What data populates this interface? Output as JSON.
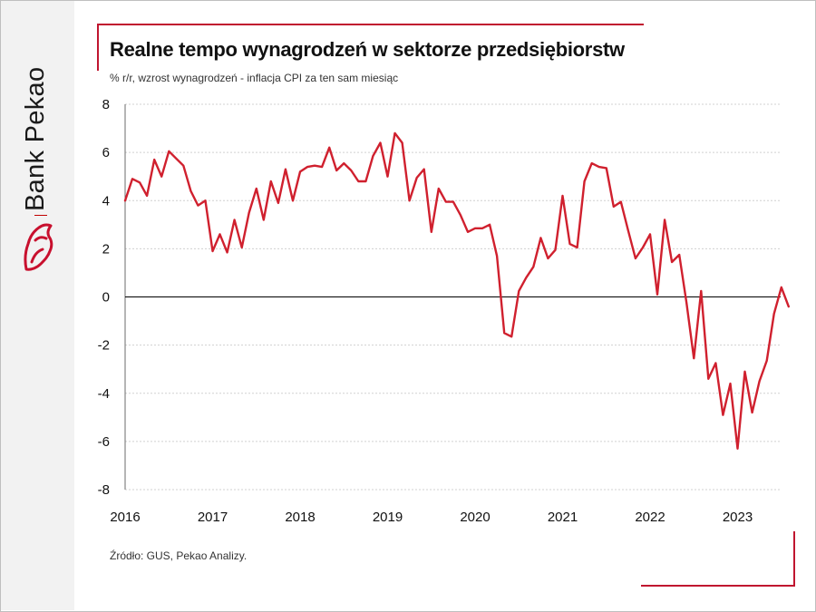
{
  "brand": {
    "name": "Bank Pekao",
    "logo_icon": "bison-logo-icon",
    "accent": "#c8102e"
  },
  "header": {
    "title": "Realne tempo wynagrodzeń w sektorze przedsiębiorstw",
    "subtitle": "% r/r, wzrost wynagrodzeń  - inflacja CPI za ten sam miesiąc"
  },
  "footer": {
    "source": "Źródło: GUS, Pekao Analizy."
  },
  "chart_data": {
    "type": "line",
    "title": "Realne tempo wynagrodzeń w sektorze przedsiębiorstw",
    "ylabel": "% r/r, wzrost wynagrodzeń  - inflacja CPI za ten sam miesiąc",
    "xlabel": "",
    "ylim": [
      -8,
      8
    ],
    "y_ticks": [
      -8,
      -6,
      -4,
      -2,
      0,
      2,
      4,
      6,
      8
    ],
    "x_ticks": [
      "2016",
      "2017",
      "2018",
      "2019",
      "2020",
      "2021",
      "2022",
      "2023"
    ],
    "x_start": "2016-01",
    "x_frequency": "monthly",
    "grid": true,
    "zero_line": true,
    "line_color": "#d0202e",
    "series": [
      {
        "values": [
          4.0,
          4.9,
          4.75,
          4.2,
          5.7,
          5.0,
          6.05,
          5.75,
          5.45,
          4.4,
          3.8,
          4.0,
          1.9,
          2.6,
          1.85,
          3.2,
          2.05,
          3.5,
          4.5,
          3.2,
          4.8,
          3.9,
          5.3,
          4.0,
          5.2,
          5.4,
          5.45,
          5.4,
          6.2,
          5.25,
          5.55,
          5.25,
          4.8,
          4.8,
          5.85,
          6.4,
          5.0,
          6.8,
          6.4,
          4.0,
          4.95,
          5.3,
          2.7,
          4.5,
          3.95,
          3.95,
          3.4,
          2.7,
          2.85,
          2.85,
          3.0,
          1.7,
          -1.5,
          -1.65,
          0.25,
          0.8,
          1.25,
          2.45,
          1.6,
          1.95,
          4.2,
          2.2,
          2.05,
          4.8,
          5.55,
          5.4,
          5.35,
          3.75,
          3.95,
          2.75,
          1.6,
          2.05,
          2.6,
          0.1,
          3.2,
          1.45,
          1.75,
          -0.25,
          -2.55,
          0.25,
          -3.4,
          -2.75,
          -4.9,
          -3.6,
          -6.3,
          -3.1,
          -4.8,
          -3.5,
          -2.65,
          -0.7,
          0.4,
          -0.4
        ]
      }
    ]
  }
}
